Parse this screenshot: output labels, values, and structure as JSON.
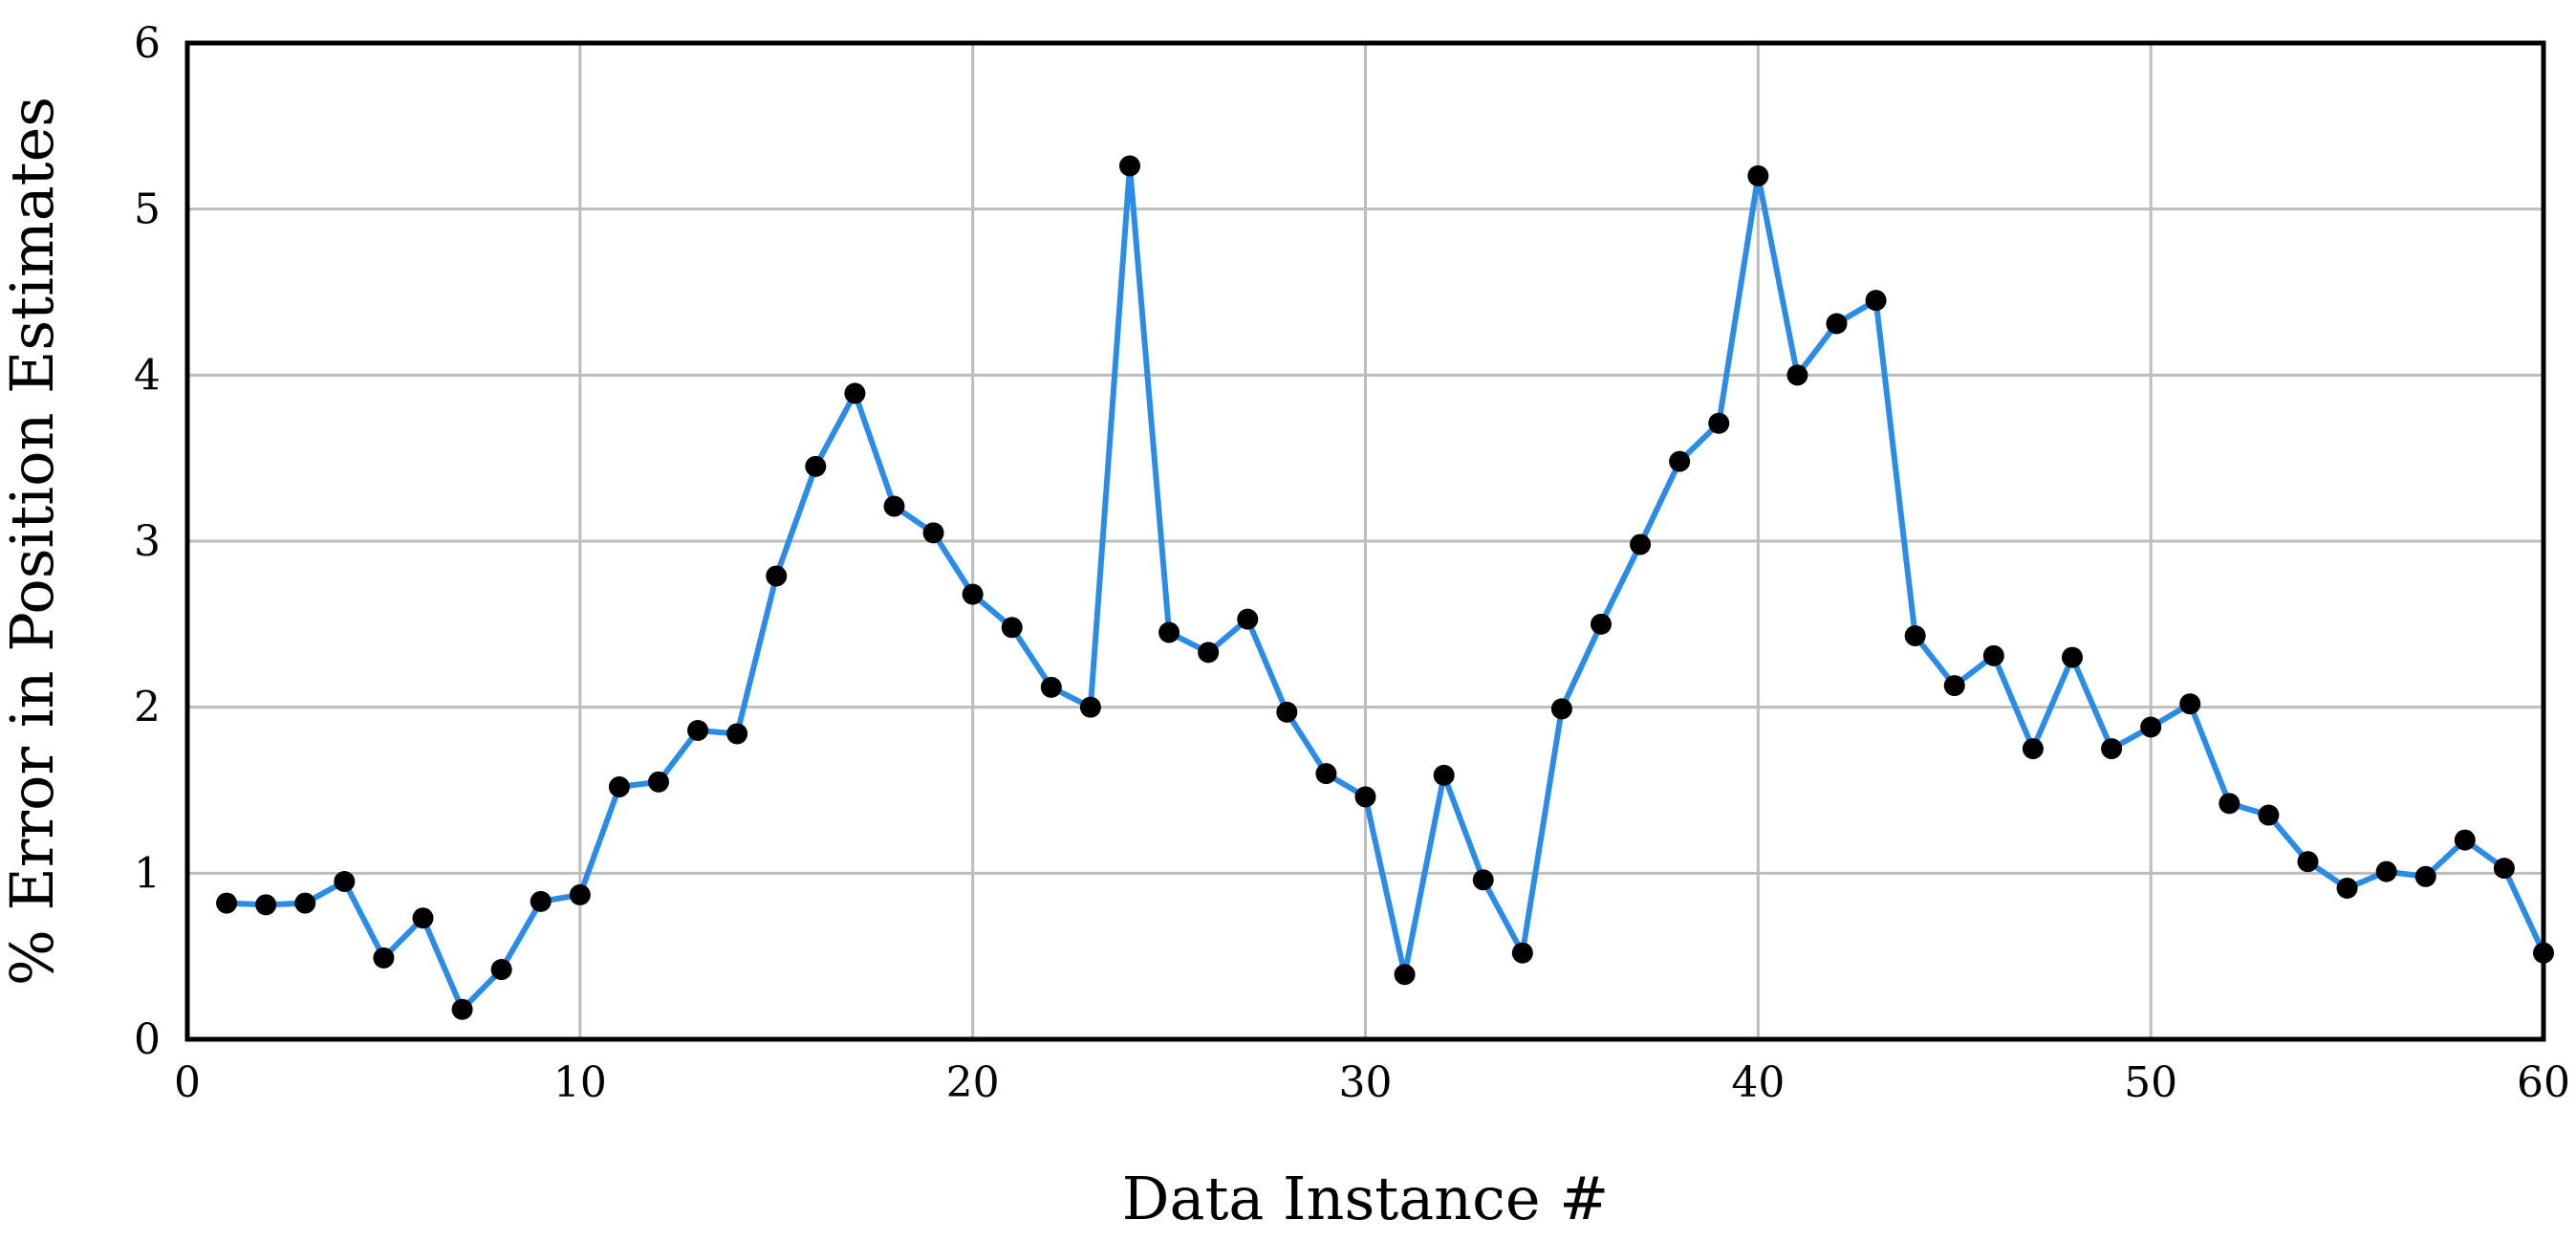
{
  "chart_data": {
    "type": "line",
    "title": "",
    "xlabel": "Data Instance #",
    "ylabel": "% Error in Position Estimates",
    "xlim": [
      0,
      60
    ],
    "ylim": [
      0,
      6
    ],
    "xticks": [
      0,
      10,
      20,
      30,
      40,
      50,
      60
    ],
    "yticks": [
      0,
      1,
      2,
      3,
      4,
      5,
      6
    ],
    "grid": true,
    "legend": "none",
    "colors": {
      "line": "#2b8ce8",
      "marker": "#000000",
      "grid": "#bdbdbd",
      "frame": "#000000"
    },
    "series": [
      {
        "x": [
          1,
          2,
          3,
          4,
          5,
          6,
          7,
          8,
          9,
          10,
          11,
          12,
          13,
          14,
          15,
          16,
          17,
          18,
          19,
          20,
          21,
          22,
          23,
          24,
          25,
          26,
          27,
          28,
          29,
          30,
          31,
          32,
          33,
          34,
          35,
          36,
          37,
          38,
          39,
          40,
          41,
          42,
          43,
          44,
          45,
          46,
          47,
          48,
          49,
          50,
          51,
          52,
          53,
          54,
          55,
          56,
          57,
          58,
          59,
          60
        ],
        "y": [
          0.82,
          0.81,
          0.82,
          0.95,
          0.49,
          0.73,
          0.18,
          0.42,
          0.83,
          0.87,
          1.52,
          1.55,
          1.86,
          1.84,
          2.79,
          3.45,
          3.89,
          3.21,
          3.05,
          2.68,
          2.48,
          2.12,
          2.0,
          5.26,
          2.45,
          2.33,
          2.53,
          1.97,
          1.6,
          1.46,
          0.39,
          1.59,
          0.96,
          0.52,
          1.99,
          2.5,
          2.98,
          3.48,
          3.71,
          5.2,
          4.0,
          4.31,
          4.45,
          2.43,
          2.13,
          2.31,
          1.75,
          2.3,
          1.75,
          1.88,
          2.02,
          1.42,
          1.35,
          1.07,
          0.91,
          1.01,
          0.98,
          1.2,
          1.03,
          0.52
        ]
      }
    ]
  }
}
